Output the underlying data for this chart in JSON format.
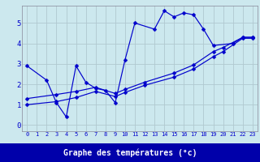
{
  "line1_x": [
    0,
    2,
    3,
    4,
    5,
    6,
    7,
    8,
    9,
    10,
    11,
    13,
    14,
    15,
    16,
    17,
    18,
    19,
    21,
    22,
    23
  ],
  "line1_y": [
    2.9,
    2.2,
    1.1,
    0.4,
    2.9,
    2.1,
    1.8,
    1.7,
    1.1,
    3.2,
    5.0,
    4.7,
    5.6,
    5.3,
    5.5,
    5.4,
    4.7,
    3.9,
    4.0,
    4.3,
    4.3
  ],
  "line2_x": [
    0,
    3,
    5,
    7,
    9,
    10,
    12,
    15,
    17,
    19,
    20,
    22,
    23
  ],
  "line2_y": [
    1.3,
    1.5,
    1.65,
    1.85,
    1.55,
    1.75,
    2.1,
    2.55,
    2.95,
    3.6,
    3.8,
    4.3,
    4.3
  ],
  "line3_x": [
    0,
    3,
    5,
    7,
    9,
    10,
    12,
    15,
    17,
    19,
    20,
    22,
    23
  ],
  "line3_y": [
    1.0,
    1.15,
    1.35,
    1.65,
    1.4,
    1.6,
    1.95,
    2.35,
    2.75,
    3.35,
    3.6,
    4.25,
    4.25
  ],
  "line_color": "#0000cc",
  "bg_color": "#cce8ee",
  "grid_color": "#b0c8d0",
  "xlabel": "Graphe des températures (°c)",
  "xlabel_bar_color": "#0000aa",
  "ylabel_ticks": [
    0,
    1,
    2,
    3,
    4,
    5
  ],
  "xlim": [
    -0.5,
    23.5
  ],
  "ylim": [
    -0.3,
    5.85
  ],
  "tick_fontsize": 5.0,
  "xlabel_fontsize": 7.0,
  "marker_size": 2.5,
  "line_width": 0.85
}
